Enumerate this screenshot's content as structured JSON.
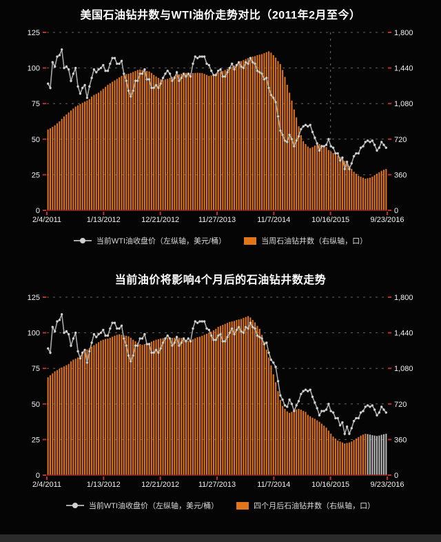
{
  "colors": {
    "background": "#050505",
    "title": "#ffffff",
    "label": "#f2f2f2",
    "legend_text": "#d9d9d9",
    "grid": "#d8d8d8",
    "tick": "#c03026",
    "axis_line": "#8f2a20",
    "bar": "#e0751a",
    "future_bar": "#b9b9b9",
    "line": "#a9a9a9",
    "line_dot": "#d0d0d0",
    "footer": "#2b2b2b"
  },
  "chart_data": [
    {
      "type": "combo-bar-line",
      "title": "美国石油钻井数与WTI油价走势对比（2011年2月至今）",
      "x_range": [
        "2/4/2011",
        "9/23/2016"
      ],
      "x_tick_labels": [
        "2/4/2011",
        "1/13/2012",
        "12/21/2012",
        "11/27/2013",
        "11/7/2014",
        "10/16/2015",
        "9/23/2016"
      ],
      "left_axis": {
        "ticks": [
          "0",
          "25",
          "50",
          "75",
          "100",
          "125"
        ],
        "min": 0,
        "max": 125
      },
      "right_axis": {
        "ticks": [
          "0",
          "360",
          "720",
          "1,080",
          "1,440",
          "1,800"
        ],
        "min": 0,
        "max": 1800
      },
      "legend": [
        "当前WTI油收盘价（左纵轴，美元/桶）",
        "当周石油钻井数（右纵轴，口）"
      ],
      "grid": "dashed-horizontal",
      "legend_position": "bottom",
      "marker_line_tick": 5,
      "series": [
        {
          "name": "当前WTI油收盘价",
          "type": "line",
          "axis": "left",
          "values": [
            89,
            86,
            104,
            101,
            108,
            109,
            113,
            100,
            101,
            99,
            91,
            96,
            100,
            87,
            82,
            86,
            88,
            79,
            87,
            93,
            99,
            97,
            99,
            100,
            102,
            98,
            98,
            103,
            107,
            107,
            103,
            103,
            105,
            96,
            91,
            84,
            80,
            84,
            91,
            91,
            96,
            96,
            99,
            92,
            92,
            86,
            86,
            88,
            86,
            89,
            93,
            96,
            98,
            96,
            91,
            93,
            97,
            91,
            93,
            96,
            94,
            96,
            94,
            103,
            108,
            107,
            108,
            108,
            108,
            103,
            102,
            98,
            95,
            95,
            98,
            99,
            94,
            94,
            97,
            100,
            103,
            99,
            102,
            104,
            101,
            100,
            104,
            103,
            107,
            104,
            103,
            98,
            97,
            96,
            92,
            93,
            86,
            81,
            79,
            76,
            66,
            56,
            53,
            49,
            48,
            53,
            50,
            45,
            49,
            52,
            57,
            59,
            60,
            59,
            60,
            55,
            51,
            47,
            42,
            45,
            45,
            46,
            50,
            45,
            44,
            40,
            40,
            35,
            37,
            29,
            34,
            29,
            33,
            38,
            40,
            40,
            44,
            45,
            48,
            49,
            48,
            49,
            46,
            42,
            44,
            48,
            46,
            44
          ]
        },
        {
          "name": "当周石油钻井数",
          "type": "bar",
          "axis": "right",
          "values": [
            818,
            830,
            845,
            860,
            880,
            900,
            925,
            950,
            970,
            990,
            1010,
            1030,
            1050,
            1062,
            1075,
            1088,
            1100,
            1112,
            1125,
            1150,
            1168,
            1178,
            1190,
            1210,
            1230,
            1250,
            1270,
            1285,
            1300,
            1315,
            1330,
            1345,
            1360,
            1370,
            1378,
            1382,
            1390,
            1400,
            1410,
            1420,
            1425,
            1420,
            1413,
            1410,
            1405,
            1390,
            1370,
            1355,
            1340,
            1325,
            1318,
            1325,
            1330,
            1340,
            1350,
            1360,
            1370,
            1375,
            1382,
            1386,
            1390,
            1392,
            1390,
            1388,
            1390,
            1392,
            1390,
            1388,
            1380,
            1370,
            1360,
            1365,
            1375,
            1385,
            1395,
            1400,
            1410,
            1420,
            1430,
            1440,
            1450,
            1465,
            1480,
            1500,
            1510,
            1520,
            1530,
            1540,
            1550,
            1555,
            1560,
            1570,
            1575,
            1580,
            1590,
            1600,
            1609,
            1595,
            1570,
            1545,
            1510,
            1480,
            1420,
            1350,
            1270,
            1190,
            1110,
            1020,
            940,
            850,
            760,
            700,
            670,
            645,
            630,
            640,
            655,
            665,
            670,
            662,
            650,
            640,
            610,
            595,
            580,
            570,
            555,
            540,
            520,
            500,
            480,
            450,
            420,
            390,
            370,
            350,
            340,
            330,
            320,
            325,
            330,
            340,
            355,
            370,
            385,
            400,
            410,
            418
          ]
        }
      ]
    },
    {
      "type": "combo-bar-line",
      "title": "当前油价将影响4个月后的石油钻井数走势",
      "x_range": [
        "2/4/2011",
        "9/23/2016"
      ],
      "x_tick_labels": [
        "2/4/2011",
        "1/13/2012",
        "12/21/2012",
        "11/27/2013",
        "11/7/2014",
        "10/16/2015",
        "9/23/2016"
      ],
      "left_axis": {
        "ticks": [
          "0",
          "25",
          "50",
          "75",
          "100",
          "125"
        ],
        "min": 0,
        "max": 125
      },
      "right_axis": {
        "ticks": [
          "0",
          "360",
          "720",
          "1,080",
          "1,440",
          "1,800"
        ],
        "min": 0,
        "max": 1800
      },
      "legend": [
        "当前WTI油收盘价（左纵轴，美元/桶）",
        "四个月后石油钻井数（右纵轴，口）"
      ],
      "grid": "dashed-horizontal",
      "legend_position": "bottom",
      "series": [
        {
          "name": "当前WTI油收盘价",
          "type": "line",
          "axis": "left",
          "values": [
            89,
            86,
            104,
            101,
            108,
            109,
            113,
            100,
            101,
            99,
            91,
            96,
            100,
            87,
            82,
            86,
            88,
            79,
            87,
            93,
            99,
            97,
            99,
            100,
            102,
            98,
            98,
            103,
            107,
            107,
            103,
            103,
            105,
            96,
            91,
            84,
            80,
            84,
            91,
            91,
            96,
            96,
            99,
            92,
            92,
            86,
            86,
            88,
            86,
            89,
            93,
            96,
            98,
            96,
            91,
            93,
            97,
            91,
            93,
            96,
            94,
            96,
            94,
            103,
            108,
            107,
            108,
            108,
            108,
            103,
            102,
            98,
            95,
            95,
            98,
            99,
            94,
            94,
            97,
            100,
            103,
            99,
            102,
            104,
            101,
            100,
            104,
            103,
            107,
            104,
            103,
            98,
            97,
            96,
            92,
            93,
            86,
            81,
            79,
            76,
            66,
            56,
            53,
            49,
            48,
            53,
            50,
            45,
            49,
            52,
            57,
            59,
            60,
            59,
            60,
            55,
            51,
            47,
            42,
            45,
            45,
            46,
            50,
            45,
            44,
            40,
            40,
            35,
            37,
            29,
            34,
            29,
            33,
            38,
            40,
            40,
            44,
            45,
            48,
            49,
            48,
            49,
            46,
            42,
            44,
            48,
            46,
            44
          ]
        },
        {
          "name": "四个月后石油钻井数",
          "type": "bar",
          "axis": "right",
          "values": [
            990,
            1010,
            1030,
            1050,
            1062,
            1075,
            1088,
            1100,
            1112,
            1125,
            1150,
            1168,
            1178,
            1190,
            1210,
            1230,
            1250,
            1270,
            1285,
            1300,
            1315,
            1330,
            1345,
            1360,
            1370,
            1378,
            1382,
            1390,
            1400,
            1410,
            1420,
            1425,
            1420,
            1413,
            1410,
            1405,
            1390,
            1370,
            1355,
            1340,
            1325,
            1318,
            1325,
            1330,
            1340,
            1350,
            1360,
            1370,
            1375,
            1382,
            1386,
            1390,
            1392,
            1390,
            1388,
            1390,
            1392,
            1390,
            1388,
            1380,
            1370,
            1360,
            1365,
            1375,
            1385,
            1395,
            1400,
            1410,
            1420,
            1430,
            1440,
            1450,
            1465,
            1480,
            1500,
            1510,
            1520,
            1530,
            1540,
            1550,
            1555,
            1560,
            1570,
            1575,
            1580,
            1590,
            1600,
            1609,
            1595,
            1570,
            1545,
            1510,
            1480,
            1420,
            1350,
            1270,
            1190,
            1110,
            1020,
            940,
            850,
            760,
            700,
            670,
            645,
            630,
            640,
            655,
            665,
            670,
            662,
            650,
            640,
            610,
            595,
            580,
            570,
            555,
            540,
            520,
            500,
            480,
            450,
            420,
            390,
            370,
            350,
            340,
            330,
            320,
            325,
            330,
            340,
            355,
            370,
            385,
            400,
            410,
            418
          ]
        }
      ],
      "future_values": [
        415,
        410,
        404,
        400,
        396,
        400,
        408,
        414,
        418
      ]
    }
  ]
}
